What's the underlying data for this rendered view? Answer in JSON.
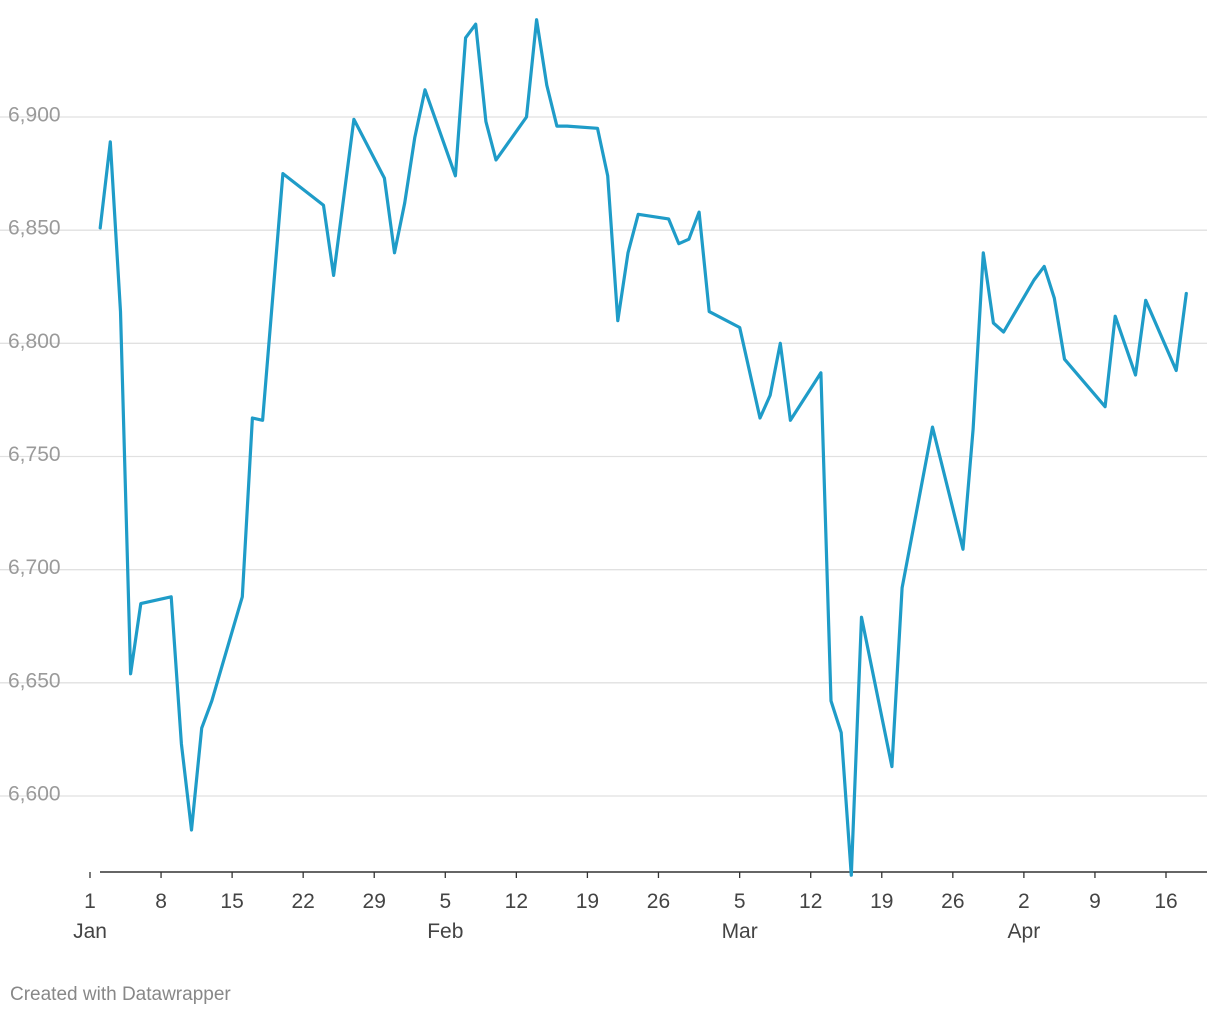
{
  "credit": "Created with Datawrapper",
  "colors": {
    "line": "#1f9cc8",
    "grid": "#e1e1e1",
    "axis": "#333333"
  },
  "chart_data": {
    "type": "line",
    "title": "",
    "xlabel": "",
    "ylabel": "",
    "grid": true,
    "ylim": [
      6562,
      6945
    ],
    "xlim": [
      "2024-01-01",
      "2024-04-19"
    ],
    "y_ticks": [
      6600,
      6650,
      6700,
      6750,
      6800,
      6850,
      6900
    ],
    "y_tick_labels": [
      "6,600",
      "6,650",
      "6,700",
      "6,750",
      "6,800",
      "6,850",
      "6,900"
    ],
    "x_ticks": [
      {
        "date": "2024-01-01",
        "label": "1",
        "sublabel": "Jan"
      },
      {
        "date": "2024-01-08",
        "label": "8",
        "sublabel": ""
      },
      {
        "date": "2024-01-15",
        "label": "15",
        "sublabel": ""
      },
      {
        "date": "2024-01-22",
        "label": "22",
        "sublabel": ""
      },
      {
        "date": "2024-01-29",
        "label": "29",
        "sublabel": ""
      },
      {
        "date": "2024-02-05",
        "label": "5",
        "sublabel": "Feb"
      },
      {
        "date": "2024-02-12",
        "label": "12",
        "sublabel": ""
      },
      {
        "date": "2024-02-19",
        "label": "19",
        "sublabel": ""
      },
      {
        "date": "2024-02-26",
        "label": "26",
        "sublabel": ""
      },
      {
        "date": "2024-03-05",
        "label": "5",
        "sublabel": "Mar"
      },
      {
        "date": "2024-03-12",
        "label": "12",
        "sublabel": ""
      },
      {
        "date": "2024-03-19",
        "label": "19",
        "sublabel": ""
      },
      {
        "date": "2024-03-26",
        "label": "26",
        "sublabel": ""
      },
      {
        "date": "2024-04-02",
        "label": "2",
        "sublabel": "Apr"
      },
      {
        "date": "2024-04-09",
        "label": "9",
        "sublabel": ""
      },
      {
        "date": "2024-04-16",
        "label": "16",
        "sublabel": ""
      }
    ],
    "series": [
      {
        "points": [
          [
            "2024-01-02",
            6851
          ],
          [
            "2024-01-03",
            6889
          ],
          [
            "2024-01-04",
            6814
          ],
          [
            "2024-01-05",
            6654
          ],
          [
            "2024-01-06",
            6685
          ],
          [
            "2024-01-09",
            6688
          ],
          [
            "2024-01-10",
            6623
          ],
          [
            "2024-01-11",
            6585
          ],
          [
            "2024-01-12",
            6630
          ],
          [
            "2024-01-13",
            6642
          ],
          [
            "2024-01-16",
            6688
          ],
          [
            "2024-01-17",
            6767
          ],
          [
            "2024-01-18",
            6766
          ],
          [
            "2024-01-20",
            6875
          ],
          [
            "2024-01-24",
            6861
          ],
          [
            "2024-01-25",
            6830
          ],
          [
            "2024-01-27",
            6899
          ],
          [
            "2024-01-30",
            6873
          ],
          [
            "2024-01-31",
            6840
          ],
          [
            "2024-02-01",
            6862
          ],
          [
            "2024-02-02",
            6891
          ],
          [
            "2024-02-03",
            6912
          ],
          [
            "2024-02-06",
            6874
          ],
          [
            "2024-02-07",
            6935
          ],
          [
            "2024-02-08",
            6941
          ],
          [
            "2024-02-09",
            6898
          ],
          [
            "2024-02-10",
            6881
          ],
          [
            "2024-02-13",
            6900
          ],
          [
            "2024-02-14",
            6943
          ],
          [
            "2024-02-15",
            6914
          ],
          [
            "2024-02-16",
            6896
          ],
          [
            "2024-02-17",
            6896
          ],
          [
            "2024-02-20",
            6895
          ],
          [
            "2024-02-21",
            6874
          ],
          [
            "2024-02-22",
            6810
          ],
          [
            "2024-02-23",
            6840
          ],
          [
            "2024-02-24",
            6857
          ],
          [
            "2024-02-27",
            6855
          ],
          [
            "2024-02-28",
            6844
          ],
          [
            "2024-02-29",
            6846
          ],
          [
            "2024-03-01",
            6858
          ],
          [
            "2024-03-02",
            6814
          ],
          [
            "2024-03-05",
            6807
          ],
          [
            "2024-03-07",
            6767
          ],
          [
            "2024-03-08",
            6777
          ],
          [
            "2024-03-09",
            6800
          ],
          [
            "2024-03-10",
            6766
          ],
          [
            "2024-03-13",
            6787
          ],
          [
            "2024-03-14",
            6642
          ],
          [
            "2024-03-15",
            6628
          ],
          [
            "2024-03-16",
            6565
          ],
          [
            "2024-03-17",
            6679
          ],
          [
            "2024-03-20",
            6613
          ],
          [
            "2024-03-21",
            6692
          ],
          [
            "2024-03-24",
            6763
          ],
          [
            "2024-03-27",
            6709
          ],
          [
            "2024-03-28",
            6762
          ],
          [
            "2024-03-29",
            6840
          ],
          [
            "2024-03-30",
            6809
          ],
          [
            "2024-03-31",
            6805
          ],
          [
            "2024-04-03",
            6828
          ],
          [
            "2024-04-04",
            6834
          ],
          [
            "2024-04-05",
            6820
          ],
          [
            "2024-04-06",
            6793
          ],
          [
            "2024-04-10",
            6772
          ],
          [
            "2024-04-11",
            6812
          ],
          [
            "2024-04-13",
            6786
          ],
          [
            "2024-04-14",
            6819
          ],
          [
            "2024-04-17",
            6788
          ],
          [
            "2024-04-18",
            6822
          ]
        ]
      }
    ]
  }
}
